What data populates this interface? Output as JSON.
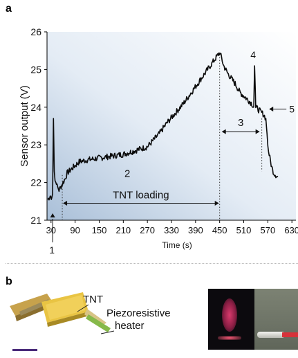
{
  "panel_a_label": "a",
  "panel_b_label": "b",
  "chart_data": {
    "type": "line",
    "xlabel": "Time (s)",
    "ylabel": "Sensor output (V)",
    "xlim": [
      20,
      640
    ],
    "ylim": [
      21,
      26
    ],
    "xticks": [
      30,
      90,
      150,
      210,
      270,
      330,
      390,
      450,
      510,
      570,
      630
    ],
    "yticks": [
      21,
      22,
      23,
      24,
      25,
      26
    ],
    "grid": false,
    "series": [
      {
        "x": [
          22,
          28,
          32,
          34,
          36,
          38,
          40,
          42,
          45,
          50,
          55,
          60,
          65,
          70,
          80,
          90,
          100,
          120,
          150,
          180,
          210,
          240,
          270,
          300,
          320,
          340,
          360,
          380,
          400,
          420,
          440,
          450,
          455,
          460,
          470,
          480,
          490,
          500,
          510,
          520,
          530,
          535,
          537,
          540,
          550,
          555,
          560,
          565,
          568,
          570,
          575,
          580,
          585,
          590,
          595
        ],
        "y": [
          21.55,
          21.65,
          21.6,
          21.7,
          23.7,
          22.3,
          22.05,
          22.0,
          21.9,
          21.8,
          21.9,
          22.0,
          22.1,
          22.25,
          22.35,
          22.45,
          22.55,
          22.6,
          22.65,
          22.7,
          22.75,
          22.85,
          22.95,
          23.3,
          23.6,
          23.85,
          24.1,
          24.4,
          24.7,
          25.0,
          25.3,
          25.45,
          25.3,
          25.1,
          24.9,
          24.75,
          24.6,
          24.4,
          24.3,
          24.2,
          24.1,
          24.0,
          25.1,
          24.0,
          23.9,
          23.85,
          23.8,
          23.7,
          23.3,
          22.95,
          22.65,
          22.4,
          22.25,
          22.2,
          22.15
        ]
      }
    ],
    "annotations": {
      "region_labels": [
        "2",
        "3"
      ],
      "tnt_loading": "TNT loading",
      "tnt_loading_range": [
        58,
        450
      ],
      "region3_range": [
        450,
        555
      ],
      "marker_1": "1",
      "marker_1_x": 34,
      "marker_4": "4",
      "marker_4_x": 537,
      "marker_5": "5",
      "marker_5_x": 568
    }
  },
  "panel_b": {
    "tnt_label": "TNT",
    "heater_line1": "Piezoresistive",
    "heater_line2": "heater"
  }
}
